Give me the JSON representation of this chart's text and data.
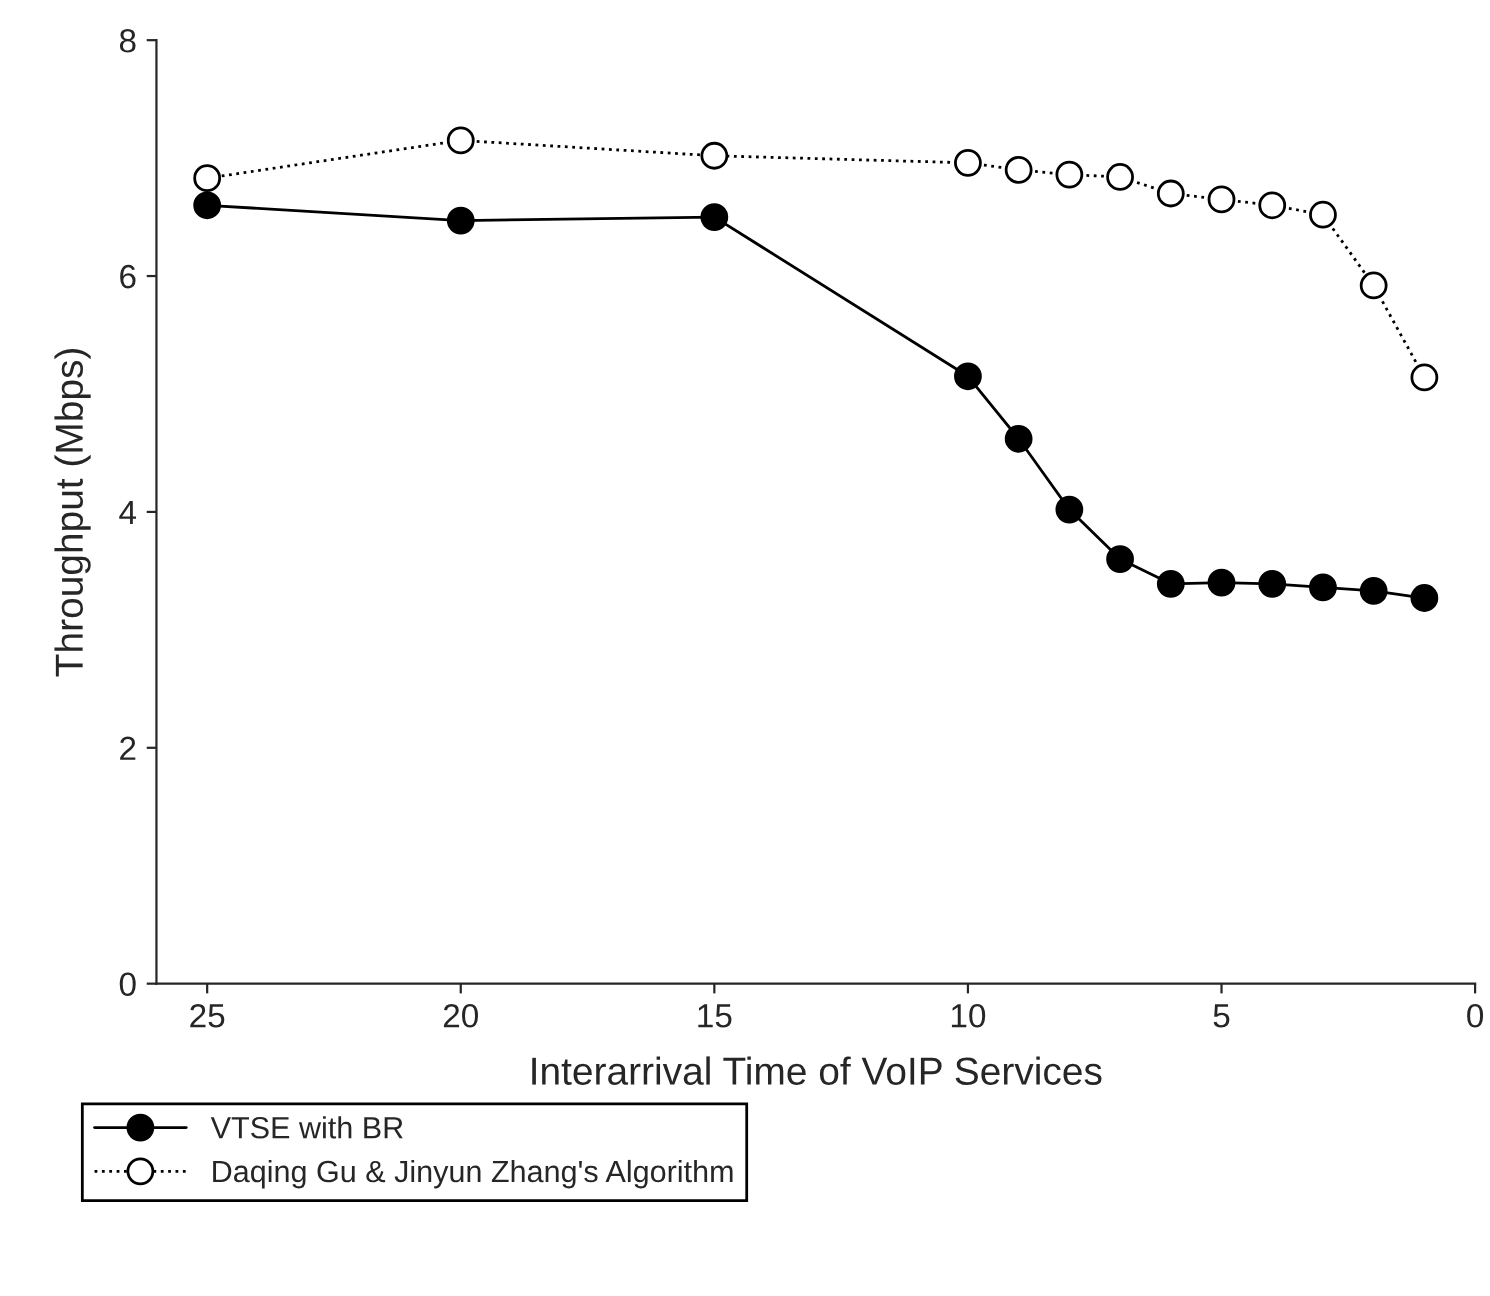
{
  "chart_data": {
    "type": "line",
    "xlabel": "Interarrival Time of VoIP Services",
    "ylabel": "Throughput (Mbps)",
    "xlim": [
      26,
      0
    ],
    "xticks": [
      25,
      20,
      15,
      10,
      5,
      0
    ],
    "ylim": [
      0,
      8
    ],
    "yticks": [
      0,
      2,
      4,
      6,
      8
    ],
    "grid": false,
    "legend": "bottom",
    "series": [
      {
        "name": "VTSE with BR",
        "color": "#000000",
        "marker": "circle",
        "line_style": "solid",
        "x": [
          25,
          20,
          15,
          10,
          9,
          8,
          7,
          6,
          5,
          4,
          3,
          2,
          1
        ],
        "values": [
          6.6,
          6.47,
          6.5,
          5.15,
          4.62,
          4.02,
          3.6,
          3.39,
          3.4,
          3.39,
          3.36,
          3.33,
          3.27
        ]
      },
      {
        "name": "Daqing Gu & Jinyun Zhang's Algorithm",
        "color": "#000000",
        "marker": "circle",
        "line_style": "dotted",
        "x": [
          25,
          20,
          15,
          10,
          9,
          8,
          7,
          6,
          5,
          4,
          3,
          2,
          1
        ],
        "values": [
          6.83,
          7.15,
          7.02,
          6.96,
          6.9,
          6.86,
          6.84,
          6.7,
          6.65,
          6.6,
          6.52,
          5.92,
          5.14
        ]
      }
    ]
  }
}
